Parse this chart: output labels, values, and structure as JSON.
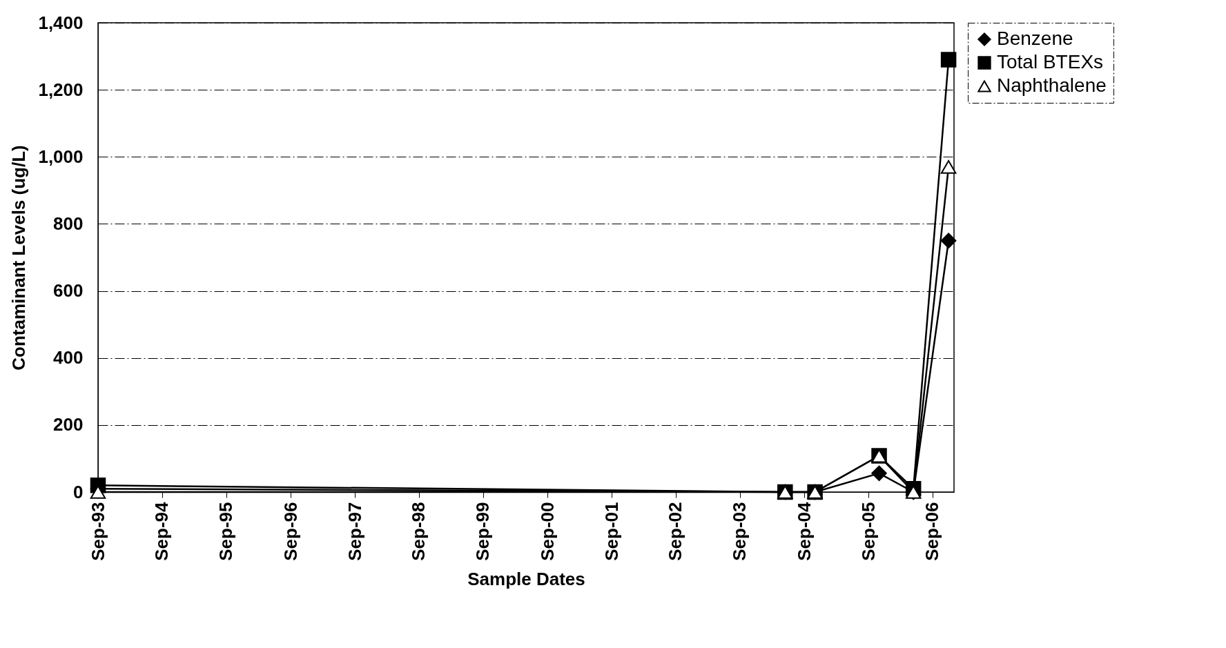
{
  "chart_data": {
    "type": "line",
    "xlabel": "Sample Dates",
    "ylabel": "Contaminant Levels (ug/L)",
    "x": [
      "1993-09-01",
      "2004-05-15",
      "2004-11-01",
      "2005-11-01",
      "2006-05-15",
      "2006-12-01"
    ],
    "series": [
      {
        "name": "Benzene",
        "color": "#000000",
        "marker": "diamond",
        "values": [
          10,
          0,
          0,
          56,
          0,
          750
        ]
      },
      {
        "name": "Total BTEXs",
        "color": "#000000",
        "marker": "square",
        "values": [
          20,
          0,
          0,
          108,
          10,
          1290
        ]
      },
      {
        "name": "Naphthalene",
        "color": "#ffffff",
        "marker": "triangle",
        "values": [
          0,
          0,
          0,
          108,
          0,
          970
        ]
      }
    ],
    "xlim": [
      "1993-09-01",
      "2007-01-01"
    ],
    "xticks": [
      {
        "value": "1993-09-01",
        "label": "Sep-93"
      },
      {
        "value": "1994-09-01",
        "label": "Sep-94"
      },
      {
        "value": "1995-09-01",
        "label": "Sep-95"
      },
      {
        "value": "1996-09-01",
        "label": "Sep-96"
      },
      {
        "value": "1997-09-01",
        "label": "Sep-97"
      },
      {
        "value": "1998-09-01",
        "label": "Sep-98"
      },
      {
        "value": "1999-09-01",
        "label": "Sep-99"
      },
      {
        "value": "2000-09-01",
        "label": "Sep-00"
      },
      {
        "value": "2001-09-01",
        "label": "Sep-01"
      },
      {
        "value": "2002-09-01",
        "label": "Sep-02"
      },
      {
        "value": "2003-09-01",
        "label": "Sep-03"
      },
      {
        "value": "2004-09-01",
        "label": "Sep-04"
      },
      {
        "value": "2005-09-01",
        "label": "Sep-05"
      },
      {
        "value": "2006-09-01",
        "label": "Sep-06"
      }
    ],
    "ylim": [
      0,
      1400
    ],
    "yticks": [
      0,
      {
        "value": 200,
        "label": "200"
      },
      {
        "value": 400,
        "label": "400"
      },
      {
        "value": 600,
        "label": "600"
      },
      {
        "value": 800,
        "label": "800"
      },
      {
        "value": 1000,
        "label": "1,000"
      },
      {
        "value": 1200,
        "label": "1,200"
      },
      {
        "value": 1400,
        "label": "1,400"
      }
    ],
    "grid": "y",
    "legend": "right",
    "line_style": "solid"
  }
}
